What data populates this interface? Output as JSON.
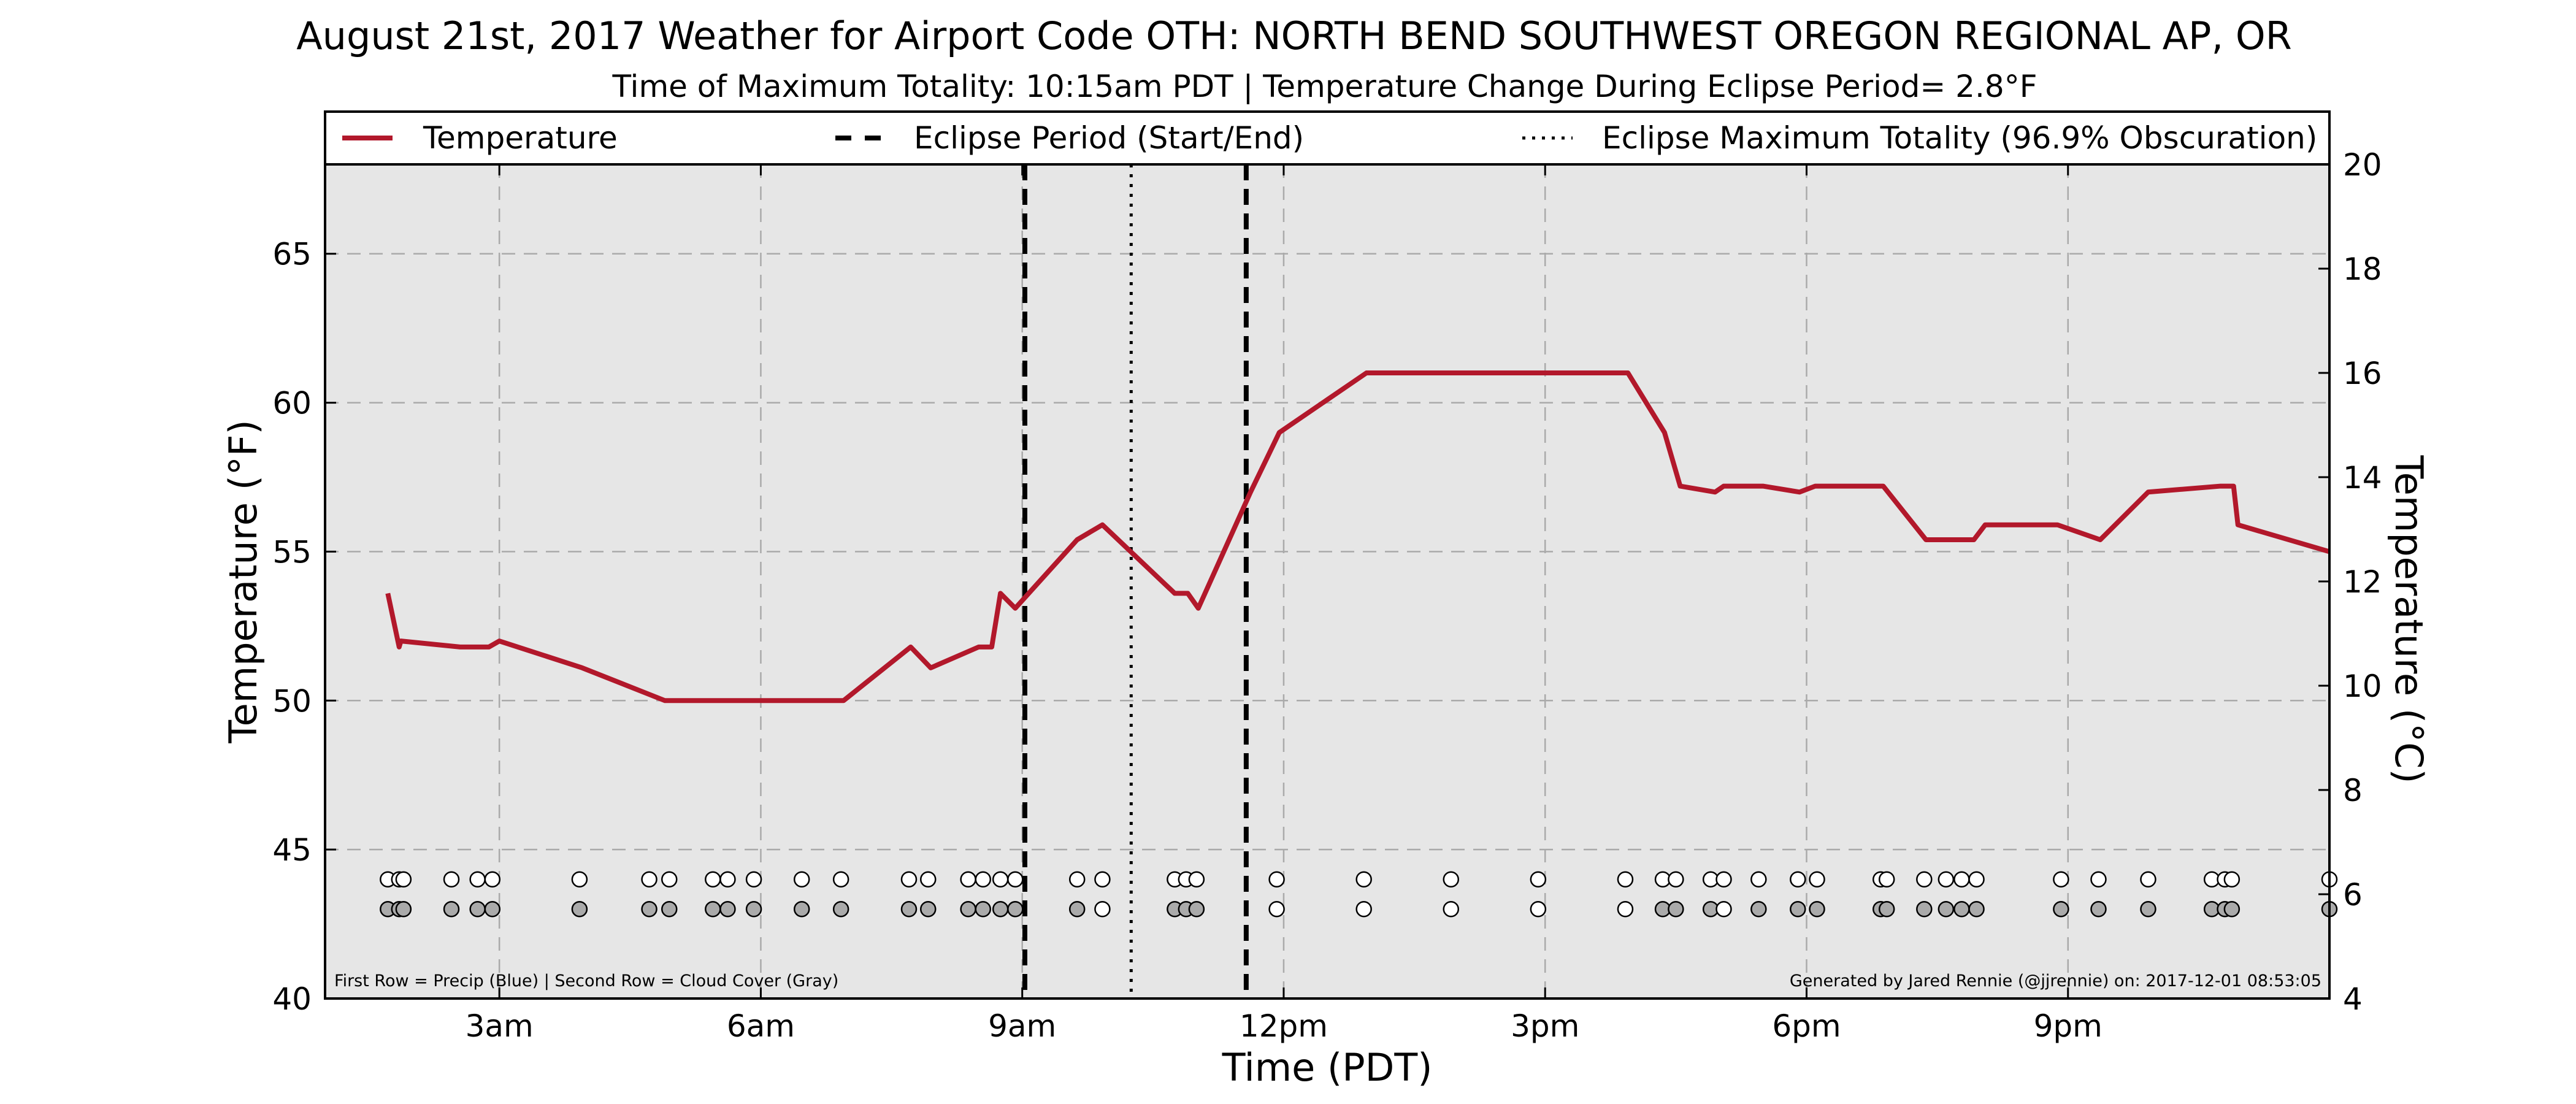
{
  "chart_data": {
    "type": "line",
    "title": "August 21st, 2017 Weather for Airport Code OTH: NORTH BEND SOUTHWEST OREGON REGIONAL AP, OR",
    "subtitle": "Time of Maximum Totality: 10:15am PDT | Temperature Change During Eclipse Period= 2.8°F",
    "xlabel": "Time (PDT)",
    "ylabel": "Temperature (°F)",
    "y2label": "Temperature (°C)",
    "xlim": [
      1.0,
      24.0
    ],
    "ylim": [
      40,
      68
    ],
    "y2lim": [
      4,
      20
    ],
    "x_ticks": [
      {
        "value": 3,
        "label": "3am"
      },
      {
        "value": 6,
        "label": "6am"
      },
      {
        "value": 9,
        "label": "9am"
      },
      {
        "value": 12,
        "label": "12pm"
      },
      {
        "value": 15,
        "label": "3pm"
      },
      {
        "value": 18,
        "label": "6pm"
      },
      {
        "value": 21,
        "label": "9pm"
      }
    ],
    "y_ticks": [
      40,
      45,
      50,
      55,
      60,
      65
    ],
    "y2_ticks": [
      4,
      6,
      8,
      10,
      12,
      14,
      16,
      18,
      20
    ],
    "grid": true,
    "legend_placement": "top, above plot",
    "legend": [
      {
        "key": "temperature",
        "label": "Temperature",
        "style": "solid",
        "color": "#b2182b"
      },
      {
        "key": "eclipse",
        "label": "Eclipse Period (Start/End)",
        "style": "dashed",
        "color": "#000000"
      },
      {
        "key": "totality",
        "label": "Eclipse Maximum Totality (96.9% Obscuration)",
        "style": "dotted",
        "color": "#000000"
      }
    ],
    "series": [
      {
        "name": "Temperature",
        "color": "#b2182b",
        "x": [
          1.72,
          1.85,
          1.87,
          2.55,
          2.88,
          3.0,
          3.95,
          4.9,
          6.95,
          7.72,
          7.95,
          8.5,
          8.65,
          8.75,
          8.92,
          9.63,
          9.92,
          10.75,
          10.9,
          11.02,
          11.62,
          11.95,
          12.95,
          14.95,
          15.95,
          16.37,
          16.55,
          16.95,
          17.05,
          17.5,
          17.92,
          18.1,
          18.88,
          19.37,
          19.92,
          20.05,
          20.88,
          21.37,
          21.92,
          22.75,
          22.9,
          22.95,
          24.0
        ],
        "y": [
          53.6,
          51.8,
          52.0,
          51.8,
          51.8,
          52.0,
          51.1,
          50.0,
          50.0,
          51.8,
          51.1,
          51.8,
          51.8,
          53.6,
          53.1,
          55.4,
          55.9,
          53.6,
          53.6,
          53.1,
          57.0,
          59.0,
          61.0,
          61.0,
          61.0,
          59.0,
          57.2,
          57.0,
          57.2,
          57.2,
          57.0,
          57.2,
          57.2,
          55.4,
          55.4,
          55.9,
          55.9,
          55.4,
          57.0,
          57.2,
          57.2,
          55.9,
          55.0
        ]
      }
    ],
    "eclipse_start": 9.03,
    "eclipse_end": 11.57,
    "max_totality": 10.25,
    "precip_row": {
      "y": 44.0,
      "fill": "#ffffff",
      "x": [
        1.72,
        1.85,
        1.9,
        2.45,
        2.75,
        2.92,
        3.92,
        4.72,
        4.95,
        5.45,
        5.62,
        5.92,
        6.47,
        6.92,
        7.7,
        7.92,
        8.38,
        8.55,
        8.75,
        8.92,
        9.63,
        9.92,
        10.75,
        10.88,
        11.0,
        11.92,
        12.92,
        13.92,
        14.92,
        15.92,
        16.35,
        16.5,
        16.9,
        17.05,
        17.45,
        17.9,
        18.12,
        18.85,
        18.92,
        19.35,
        19.6,
        19.78,
        19.95,
        20.92,
        21.35,
        21.92,
        22.65,
        22.8,
        22.88,
        24.0
      ]
    },
    "cloud_row": {
      "y": 43.0,
      "x": [
        1.72,
        1.85,
        1.9,
        2.45,
        2.75,
        2.92,
        3.92,
        4.72,
        4.95,
        5.45,
        5.62,
        5.92,
        6.47,
        6.92,
        7.7,
        7.92,
        8.38,
        8.55,
        8.75,
        8.92,
        9.63,
        9.92,
        10.75,
        10.88,
        11.0,
        11.92,
        12.92,
        13.92,
        14.92,
        15.92,
        16.35,
        16.5,
        16.9,
        17.05,
        17.45,
        17.9,
        18.12,
        18.85,
        18.92,
        19.35,
        19.6,
        19.78,
        19.95,
        20.92,
        21.35,
        21.92,
        22.65,
        22.8,
        22.88,
        24.0
      ],
      "fill": [
        "#aaaaaa",
        "#aaaaaa",
        "#aaaaaa",
        "#aaaaaa",
        "#aaaaaa",
        "#aaaaaa",
        "#aaaaaa",
        "#aaaaaa",
        "#aaaaaa",
        "#aaaaaa",
        "#aaaaaa",
        "#aaaaaa",
        "#aaaaaa",
        "#aaaaaa",
        "#aaaaaa",
        "#aaaaaa",
        "#aaaaaa",
        "#aaaaaa",
        "#aaaaaa",
        "#aaaaaa",
        "#aaaaaa",
        "#ffffff",
        "#aaaaaa",
        "#aaaaaa",
        "#aaaaaa",
        "#ffffff",
        "#ffffff",
        "#ffffff",
        "#ffffff",
        "#ffffff",
        "#aaaaaa",
        "#aaaaaa",
        "#aaaaaa",
        "#ffffff",
        "#aaaaaa",
        "#aaaaaa",
        "#aaaaaa",
        "#aaaaaa",
        "#aaaaaa",
        "#aaaaaa",
        "#aaaaaa",
        "#aaaaaa",
        "#aaaaaa",
        "#aaaaaa",
        "#aaaaaa",
        "#aaaaaa",
        "#aaaaaa",
        "#aaaaaa",
        "#aaaaaa",
        "#aaaaaa"
      ]
    },
    "footnote_left": "First Row = Precip (Blue) | Second Row = Cloud Cover (Gray)",
    "footnote_right": "Generated by Jared Rennie (@jjrennie) on: 2017-12-01 08:53:05",
    "plot_background": "#e6e6e6",
    "grid_color": "#aaaaaa"
  }
}
